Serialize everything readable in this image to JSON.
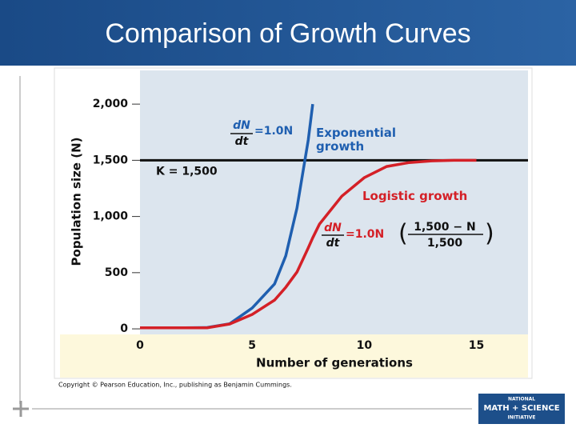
{
  "slide": {
    "title": "Comparison of Growth Curves",
    "copyright": "Copyright © Pearson Education, Inc., publishing as Benjamin Cummings.",
    "logo": [
      "NATIONAL",
      "MATH + SCIENCE",
      "INITIATIVE"
    ]
  },
  "chart_data": {
    "type": "line",
    "x_label": "Number of generations",
    "y_label": "Population size (N)",
    "x": [
      0,
      1,
      2,
      3,
      4,
      5,
      6,
      6.5,
      7,
      7.5,
      7.7,
      8,
      9,
      10,
      11,
      12,
      13,
      14,
      15
    ],
    "series": [
      {
        "name": "Exponential growth",
        "color": "#1f5fb0",
        "values": [
          10,
          10,
          10,
          12,
          45,
          185,
          400,
          650,
          1075,
          1680,
          2000,
          null,
          null,
          null,
          null,
          null,
          null,
          null,
          null
        ]
      },
      {
        "name": "Logistic growth",
        "color": "#d42027",
        "values": [
          10,
          10,
          10,
          10,
          43,
          128,
          256,
          370,
          505,
          720,
          810,
          932,
          1181,
          1345,
          1445,
          1480,
          1495,
          1500,
          1500
        ]
      }
    ],
    "xlim": [
      0,
      17.3
    ],
    "ylim": [
      -28,
      2300
    ],
    "xticks": [
      0,
      5,
      10,
      15
    ],
    "yticks": [
      0,
      500,
      {
        "value": 1000,
        "label": "1,000"
      },
      {
        "value": 1500,
        "label": "1,500"
      },
      {
        "value": 2000,
        "label": "2,000"
      }
    ],
    "reference_line": {
      "value": 1500,
      "label": "K = 1,500",
      "color": "#111111"
    },
    "annotations": {
      "exponential_rate": {
        "numerator": "dN",
        "denominator": "dt",
        "rhs": "=1.0N"
      },
      "logistic_rate": {
        "numerator": "dN",
        "denominator": "dt",
        "rhs": "=1.0N",
        "factor_numerator": "1,500 − N",
        "factor_denominator": "1,500"
      }
    }
  }
}
